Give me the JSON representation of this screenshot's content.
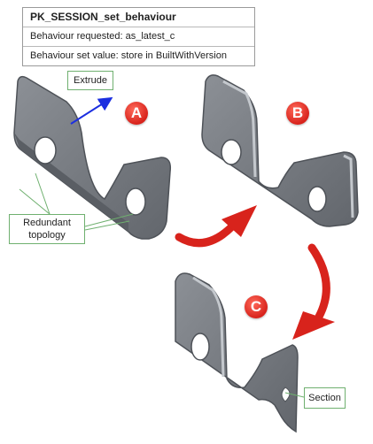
{
  "table": {
    "title": "PK_SESSION_set_behaviour",
    "row1": "Behaviour requested: as_latest_c",
    "row2": "Behaviour set value: store in BuiltWithVersion"
  },
  "callouts": {
    "extrude": "Extrude",
    "redundant_line1": "Redundant",
    "redundant_line2": "topology",
    "section": "Section"
  },
  "badges": {
    "a": "A",
    "b": "B",
    "c": "C"
  },
  "colors": {
    "part_face": "#7a7e84",
    "part_edge": "#4e5258",
    "part_highlight": "#b9bdc2",
    "callout_border": "#6fb06f",
    "extrude_arrow": "#1b2ee0",
    "flow_arrow": "#d8231c",
    "badge": "#d8231c"
  }
}
